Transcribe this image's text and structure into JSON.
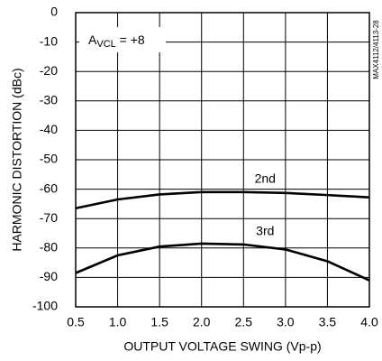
{
  "chart_data": {
    "type": "line",
    "x_label": "OUTPUT VOLTAGE SWING (Vp-p)",
    "y_label": "HARMONIC DISTORTION (dBc)",
    "annotation": {
      "base": "A",
      "sub": "VCL",
      "rest": " = +8"
    },
    "figure_id": "MAX4112/4113-28",
    "x": [
      0.5,
      1.0,
      1.5,
      2.0,
      2.5,
      3.0,
      3.5,
      4.0
    ],
    "series": [
      {
        "name": "2nd",
        "color": "#000000",
        "values": [
          -66.5,
          -63.5,
          -61.8,
          -61,
          -61,
          -61.3,
          -62,
          -62.8
        ]
      },
      {
        "name": "3rd",
        "color": "#000000",
        "values": [
          -88.5,
          -82.5,
          -79.5,
          -78.5,
          -78.8,
          -80.5,
          -84.5,
          -91
        ]
      }
    ],
    "xlim": [
      0.5,
      4.0
    ],
    "xticks": [
      0.5,
      {
        "value": 1.0,
        "label": "1.0"
      },
      1.5,
      {
        "value": 2.0,
        "label": "2.0"
      },
      2.5,
      {
        "value": 3.0,
        "label": "3.0"
      },
      3.5,
      {
        "value": 4.0,
        "label": "4.0"
      }
    ],
    "ylim": [
      -100,
      0
    ],
    "yticks": [
      0,
      -10,
      -20,
      -30,
      -40,
      -50,
      -60,
      -70,
      -80,
      -90,
      -100
    ],
    "grid": true
  }
}
